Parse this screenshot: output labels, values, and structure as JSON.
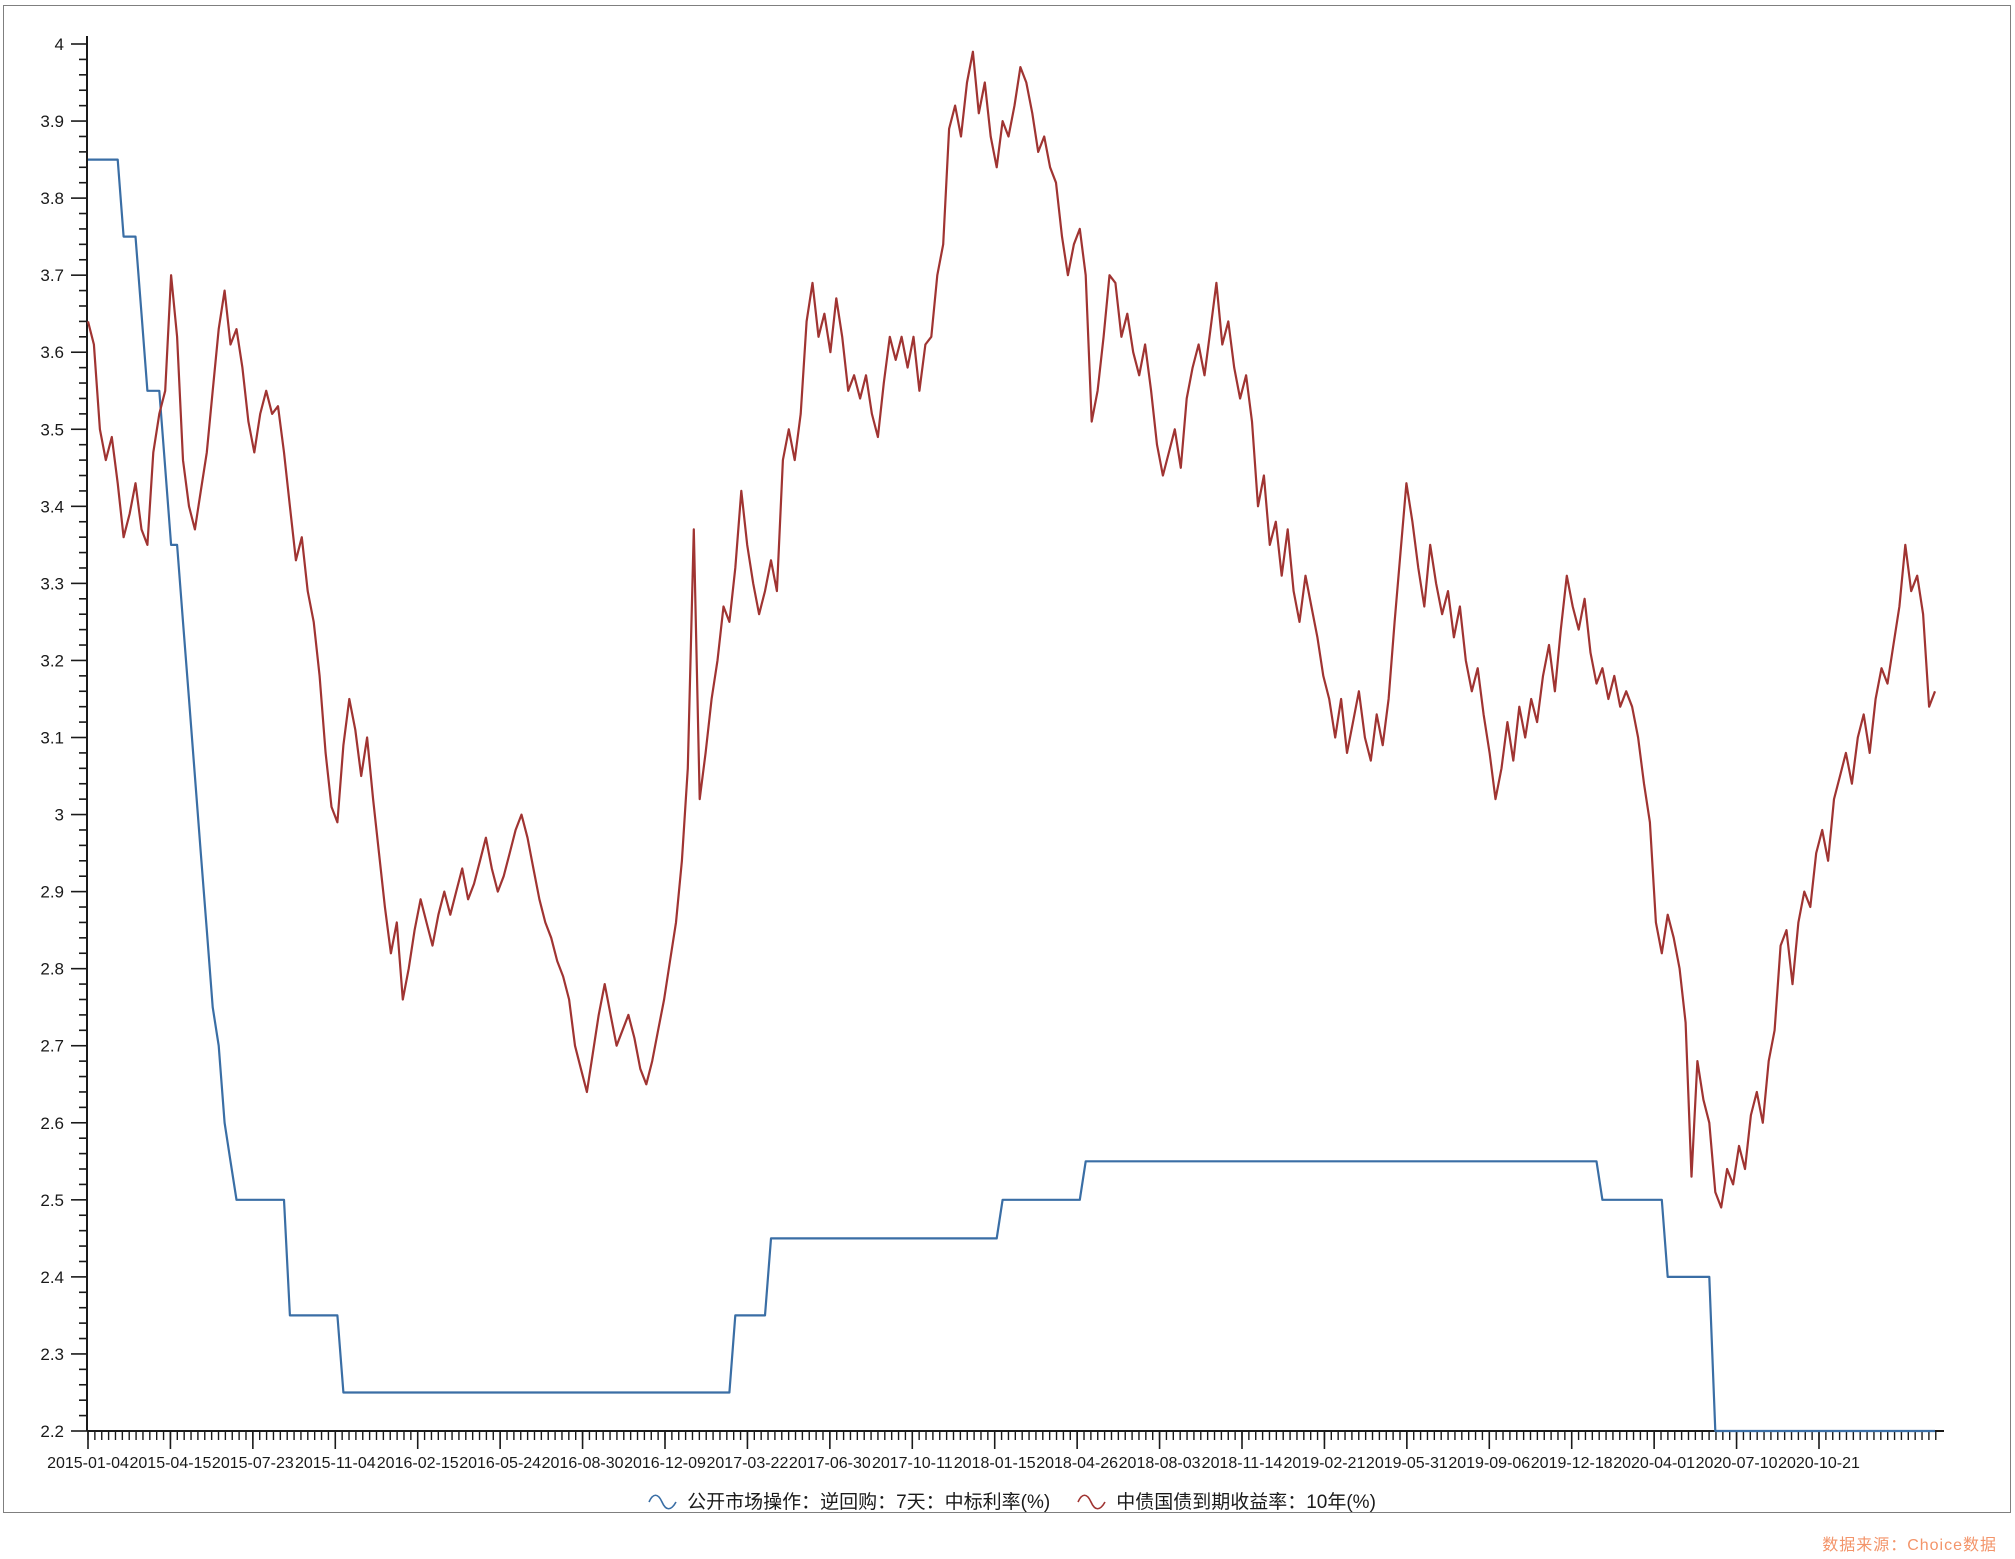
{
  "watermark": {
    "text": "数据来源：Choice数据",
    "color": "#f3946a"
  },
  "chart_data": {
    "type": "line",
    "title": "",
    "xlabel": "",
    "ylabel": "",
    "grid": false,
    "legend_position": "bottom",
    "y_range": [
      2.2,
      4.0
    ],
    "y_major_step": 0.1,
    "y_minor_step": 0.02,
    "y_tick_labels": [
      "4",
      "3.9",
      "3.8",
      "3.7",
      "3.6",
      "3.5",
      "3.4",
      "3.3",
      "3.2",
      "3.1",
      "3",
      "2.9",
      "2.8",
      "2.7",
      "2.6",
      "2.5",
      "2.4",
      "2.3",
      "2.2"
    ],
    "x_tick_labels": [
      "2015-01-04",
      "2015-04-15",
      "2015-07-23",
      "2015-11-04",
      "2016-02-15",
      "2016-05-24",
      "2016-08-30",
      "2016-12-09",
      "2017-03-22",
      "2017-06-30",
      "2017-10-11",
      "2018-01-15",
      "2018-04-26",
      "2018-08-03",
      "2018-11-14",
      "2019-02-21",
      "2019-05-31",
      "2019-09-06",
      "2019-12-18",
      "2020-04-01",
      "2020-07-10",
      "2020-10-21"
    ],
    "x_start_date": "2015-01-04",
    "x_unit": "week",
    "weeks_total": 312,
    "series": [
      {
        "name": "公开市场操作：逆回购：7天：中标利率(%)",
        "color": "#3a6ea5",
        "kind": "step_breakpoints",
        "points": [
          [
            0,
            3.85
          ],
          [
            6,
            3.75
          ],
          [
            9,
            3.65
          ],
          [
            10,
            3.55
          ],
          [
            13,
            3.45
          ],
          [
            14,
            3.35
          ],
          [
            16,
            3.25
          ],
          [
            17,
            3.15
          ],
          [
            18,
            3.05
          ],
          [
            19,
            2.95
          ],
          [
            20,
            2.85
          ],
          [
            21,
            2.75
          ],
          [
            22,
            2.7
          ],
          [
            23,
            2.6
          ],
          [
            24,
            2.55
          ],
          [
            25,
            2.5
          ],
          [
            34,
            2.35
          ],
          [
            43,
            2.25
          ],
          [
            109,
            2.35
          ],
          [
            115,
            2.45
          ],
          [
            154,
            2.5
          ],
          [
            168,
            2.55
          ],
          [
            255,
            2.5
          ],
          [
            266,
            2.4
          ],
          [
            274,
            2.2
          ],
          [
            311,
            2.2
          ]
        ]
      },
      {
        "name": "中债国债到期收益率：10年(%)",
        "color": "#a03432",
        "kind": "weekly_values",
        "values": [
          3.64,
          3.61,
          3.5,
          3.46,
          3.49,
          3.43,
          3.36,
          3.39,
          3.43,
          3.37,
          3.35,
          3.47,
          3.52,
          3.55,
          3.7,
          3.62,
          3.46,
          3.4,
          3.37,
          3.42,
          3.47,
          3.55,
          3.63,
          3.68,
          3.61,
          3.63,
          3.58,
          3.51,
          3.47,
          3.52,
          3.55,
          3.52,
          3.53,
          3.47,
          3.4,
          3.33,
          3.36,
          3.29,
          3.25,
          3.18,
          3.08,
          3.01,
          2.99,
          3.09,
          3.15,
          3.11,
          3.05,
          3.1,
          3.02,
          2.95,
          2.88,
          2.82,
          2.86,
          2.76,
          2.8,
          2.85,
          2.89,
          2.86,
          2.83,
          2.87,
          2.9,
          2.87,
          2.9,
          2.93,
          2.89,
          2.91,
          2.94,
          2.97,
          2.93,
          2.9,
          2.92,
          2.95,
          2.98,
          3.0,
          2.97,
          2.93,
          2.89,
          2.86,
          2.84,
          2.81,
          2.79,
          2.76,
          2.7,
          2.67,
          2.64,
          2.69,
          2.74,
          2.78,
          2.74,
          2.7,
          2.72,
          2.74,
          2.71,
          2.67,
          2.65,
          2.68,
          2.72,
          2.76,
          2.81,
          2.86,
          2.94,
          3.06,
          3.37,
          3.02,
          3.08,
          3.15,
          3.2,
          3.27,
          3.25,
          3.32,
          3.42,
          3.35,
          3.3,
          3.26,
          3.29,
          3.33,
          3.29,
          3.46,
          3.5,
          3.46,
          3.52,
          3.64,
          3.69,
          3.62,
          3.65,
          3.6,
          3.67,
          3.62,
          3.55,
          3.57,
          3.54,
          3.57,
          3.52,
          3.49,
          3.56,
          3.62,
          3.59,
          3.62,
          3.58,
          3.62,
          3.55,
          3.61,
          3.62,
          3.7,
          3.74,
          3.89,
          3.92,
          3.88,
          3.95,
          3.99,
          3.91,
          3.95,
          3.88,
          3.84,
          3.9,
          3.88,
          3.92,
          3.97,
          3.95,
          3.91,
          3.86,
          3.88,
          3.84,
          3.82,
          3.75,
          3.7,
          3.74,
          3.76,
          3.7,
          3.51,
          3.55,
          3.62,
          3.7,
          3.69,
          3.62,
          3.65,
          3.6,
          3.57,
          3.61,
          3.55,
          3.48,
          3.44,
          3.47,
          3.5,
          3.45,
          3.54,
          3.58,
          3.61,
          3.57,
          3.63,
          3.69,
          3.61,
          3.64,
          3.58,
          3.54,
          3.57,
          3.51,
          3.4,
          3.44,
          3.35,
          3.38,
          3.31,
          3.37,
          3.29,
          3.25,
          3.31,
          3.27,
          3.23,
          3.18,
          3.15,
          3.1,
          3.15,
          3.08,
          3.12,
          3.16,
          3.1,
          3.07,
          3.13,
          3.09,
          3.15,
          3.25,
          3.34,
          3.43,
          3.38,
          3.32,
          3.27,
          3.35,
          3.3,
          3.26,
          3.29,
          3.23,
          3.27,
          3.2,
          3.16,
          3.19,
          3.13,
          3.08,
          3.02,
          3.06,
          3.12,
          3.07,
          3.14,
          3.1,
          3.15,
          3.12,
          3.18,
          3.22,
          3.16,
          3.24,
          3.31,
          3.27,
          3.24,
          3.28,
          3.21,
          3.17,
          3.19,
          3.15,
          3.18,
          3.14,
          3.16,
          3.14,
          3.1,
          3.04,
          2.99,
          2.86,
          2.82,
          2.87,
          2.84,
          2.8,
          2.73,
          2.53,
          2.68,
          2.63,
          2.6,
          2.51,
          2.49,
          2.54,
          2.52,
          2.57,
          2.54,
          2.61,
          2.64,
          2.6,
          2.68,
          2.72,
          2.83,
          2.85,
          2.78,
          2.86,
          2.9,
          2.88,
          2.95,
          2.98,
          2.94,
          3.02,
          3.05,
          3.08,
          3.04,
          3.1,
          3.13,
          3.08,
          3.15,
          3.19,
          3.17,
          3.22,
          3.27,
          3.35,
          3.29,
          3.31,
          3.26,
          3.14,
          3.16
        ]
      }
    ]
  }
}
